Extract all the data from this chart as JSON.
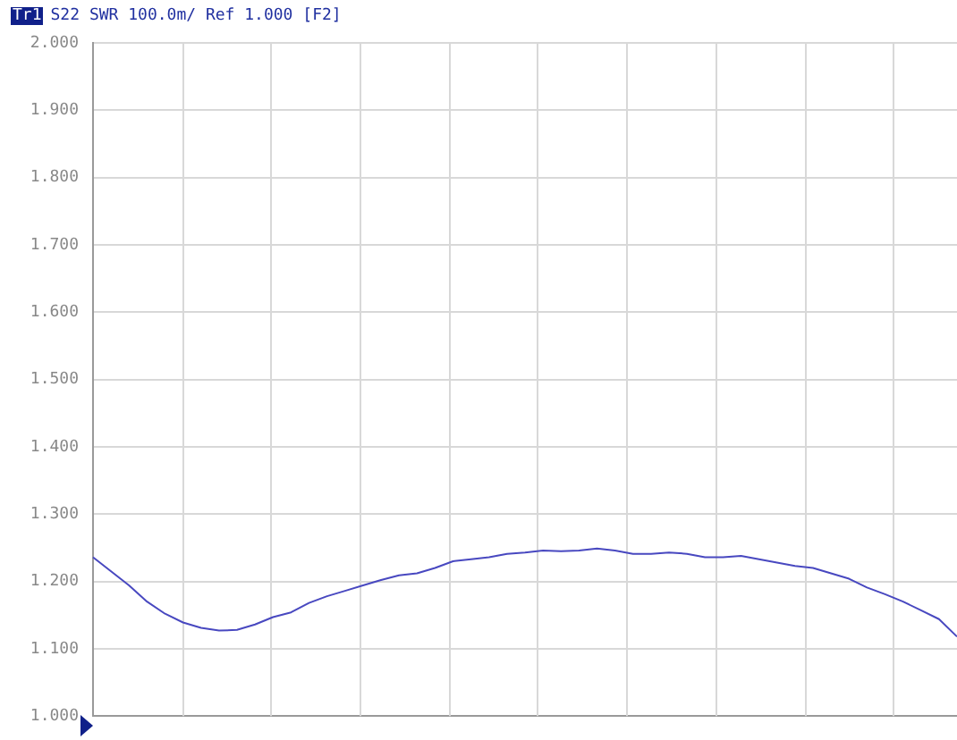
{
  "chart_data": {
    "type": "line",
    "title": "S22 SWR 100.0m/ Ref 1.000 [F2]",
    "annotations": [
      "Tr1"
    ],
    "categories": [
      null,
      null,
      null,
      null,
      null,
      null,
      null,
      null,
      null,
      null,
      null,
      null,
      null,
      null,
      null,
      null,
      null,
      null,
      null,
      null,
      null,
      null,
      null,
      null,
      null,
      null,
      null,
      null,
      null,
      null,
      null,
      null,
      null,
      null,
      null,
      null,
      null,
      null,
      null,
      null,
      null,
      null,
      null,
      null,
      null,
      null,
      null,
      null,
      null
    ],
    "series": [
      {
        "color": "#4848c0",
        "values": [
          1.236,
          1.215,
          1.194,
          1.17,
          1.152,
          1.139,
          1.131,
          1.127,
          1.128,
          1.136,
          1.147,
          1.154,
          1.168,
          1.178,
          1.186,
          1.194,
          1.202,
          1.209,
          1.212,
          1.22,
          1.23,
          1.233,
          1.236,
          1.241,
          1.243,
          1.246,
          1.245,
          1.246,
          1.249,
          1.246,
          1.241,
          1.241,
          1.243,
          1.241,
          1.236,
          1.236,
          1.238,
          1.233,
          1.228,
          1.223,
          1.22,
          1.212,
          1.204,
          1.191,
          1.181,
          1.17,
          1.157,
          1.144,
          1.118
        ]
      }
    ],
    "ylim": [
      1,
      2
    ],
    "yticks": [
      {
        "value": 1,
        "label": "1.000"
      },
      {
        "value": 1.1,
        "label": "1.100"
      },
      {
        "value": 1.2,
        "label": "1.200"
      },
      {
        "value": 1.3,
        "label": "1.300"
      },
      {
        "value": 1.4,
        "label": "1.400"
      },
      {
        "value": 1.5,
        "label": "1.500"
      },
      {
        "value": 1.6,
        "label": "1.600"
      },
      {
        "value": 1.7,
        "label": "1.700"
      },
      {
        "value": 1.8,
        "label": "1.800"
      },
      {
        "value": 1.9,
        "label": "1.900"
      },
      {
        "value": 2,
        "label": "2.000"
      }
    ],
    "tick_labels": "y",
    "grid": true,
    "legend": false,
    "marker": "none",
    "line_style": "solid"
  }
}
